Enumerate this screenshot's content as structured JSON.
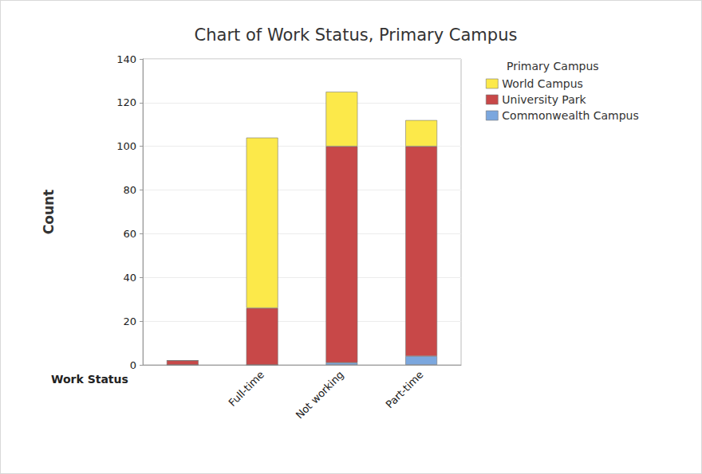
{
  "chart_data": {
    "type": "bar",
    "title": "Chart of Work Status, Primary Campus",
    "x_label": "Work Status",
    "y_label": "Count",
    "legend_title": "Primary Campus",
    "categories": [
      null,
      "Full-time",
      "Not working",
      "Part-time"
    ],
    "series": [
      {
        "name": "Commonwealth Campus",
        "color": "#7ba7de",
        "values": [
          0,
          0,
          1,
          4
        ]
      },
      {
        "name": "University Park",
        "color": "#c84848",
        "values": [
          2,
          26,
          99,
          96
        ]
      },
      {
        "name": "World Campus",
        "color": "#fce94a",
        "values": [
          0,
          78,
          25,
          12
        ]
      }
    ],
    "stacked": true,
    "legend": "top-right",
    "ylim": [
      0,
      140
    ],
    "yticks": [
      0,
      20,
      40,
      60,
      80,
      100,
      120,
      140
    ],
    "grid": true
  }
}
